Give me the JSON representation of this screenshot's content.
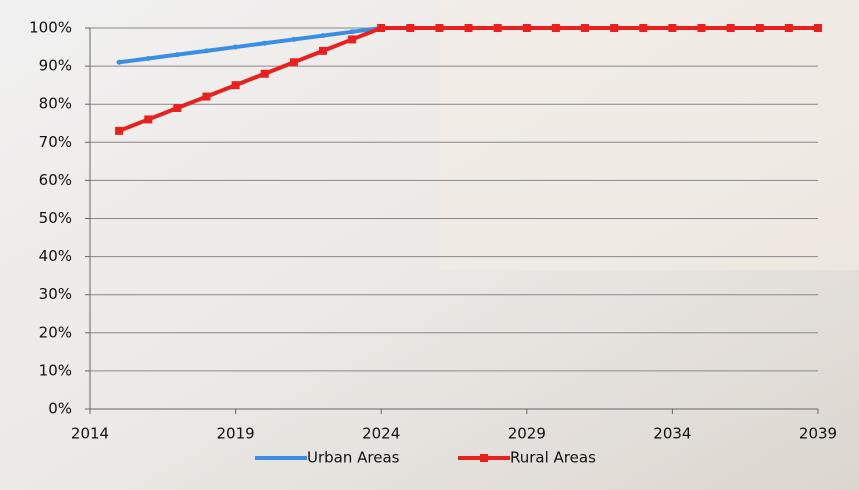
{
  "chart_data": {
    "type": "line",
    "x": [
      2015,
      2016,
      2017,
      2018,
      2019,
      2020,
      2021,
      2022,
      2023,
      2024,
      2025,
      2026,
      2027,
      2028,
      2029,
      2030,
      2031,
      2032,
      2033,
      2034,
      2035,
      2036,
      2037,
      2038,
      2039
    ],
    "series": [
      {
        "name": "Urban Areas",
        "color": "#3a8ee6",
        "values": [
          91,
          92,
          93,
          94,
          95,
          96,
          97,
          98,
          99,
          100,
          100,
          100,
          100,
          100,
          100,
          100,
          100,
          100,
          100,
          100,
          100,
          100,
          100,
          100,
          100
        ]
      },
      {
        "name": "Rural Areas",
        "color": "#e8211f",
        "values": [
          73,
          76,
          79,
          82,
          85,
          88,
          91,
          94,
          97,
          100,
          100,
          100,
          100,
          100,
          100,
          100,
          100,
          100,
          100,
          100,
          100,
          100,
          100,
          100,
          100
        ]
      }
    ],
    "xlim": [
      2014,
      2039
    ],
    "xticks": [
      2014,
      2019,
      2024,
      2029,
      2034,
      2039
    ],
    "ylim": [
      0,
      100
    ],
    "yticks": [
      {
        "value": 0,
        "label": "0%"
      },
      {
        "value": 10,
        "label": "10%"
      },
      {
        "value": 20,
        "label": "20%"
      },
      {
        "value": 30,
        "label": "30%"
      },
      {
        "value": 40,
        "label": "40%"
      },
      {
        "value": 50,
        "label": "50%"
      },
      {
        "value": 60,
        "label": "60%"
      },
      {
        "value": 70,
        "label": "70%"
      },
      {
        "value": 80,
        "label": "80%"
      },
      {
        "value": 90,
        "label": "90%"
      },
      {
        "value": 100,
        "label": "100%"
      }
    ],
    "grid": true,
    "legend": "bottom"
  }
}
